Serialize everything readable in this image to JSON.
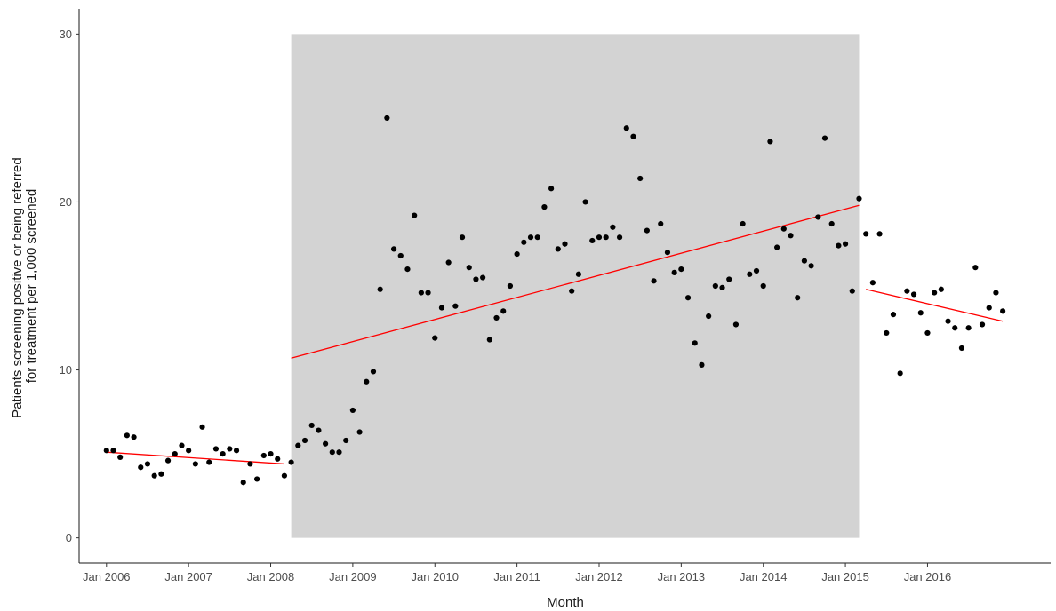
{
  "chart_data": {
    "type": "scatter",
    "title": "",
    "xlabel": "Month",
    "ylabel": [
      "Patients screening positive or being referred",
      "for treatment per 1,000 screened"
    ],
    "x_unit": "month (YYYY-MM)",
    "xlim": [
      "2005-09",
      "2017-07"
    ],
    "ylim": [
      -1.5,
      31.5
    ],
    "y_ticks": [
      0,
      10,
      20,
      30
    ],
    "x_ticks": [
      {
        "x": "2006-01",
        "label": "Jan 2006"
      },
      {
        "x": "2007-01",
        "label": "Jan 2007"
      },
      {
        "x": "2008-01",
        "label": "Jan 2008"
      },
      {
        "x": "2009-01",
        "label": "Jan 2009"
      },
      {
        "x": "2010-01",
        "label": "Jan 2010"
      },
      {
        "x": "2011-01",
        "label": "Jan 2011"
      },
      {
        "x": "2012-01",
        "label": "Jan 2012"
      },
      {
        "x": "2013-01",
        "label": "Jan 2013"
      },
      {
        "x": "2014-01",
        "label": "Jan 2014"
      },
      {
        "x": "2015-01",
        "label": "Jan 2015"
      },
      {
        "x": "2016-01",
        "label": "Jan 2016"
      }
    ],
    "grid": false,
    "shaded_period": {
      "start": "2008-04",
      "end": "2015-03",
      "ymin": 0,
      "ymax": 30,
      "color": "#d3d3d3"
    },
    "point_color": "#000000",
    "trend_color": "#ff0000",
    "points": [
      [
        "2006-01",
        5.2
      ],
      [
        "2006-02",
        5.2
      ],
      [
        "2006-03",
        4.8
      ],
      [
        "2006-04",
        6.1
      ],
      [
        "2006-05",
        6.0
      ],
      [
        "2006-06",
        4.2
      ],
      [
        "2006-07",
        4.4
      ],
      [
        "2006-08",
        3.7
      ],
      [
        "2006-09",
        3.8
      ],
      [
        "2006-10",
        4.6
      ],
      [
        "2006-11",
        5.0
      ],
      [
        "2006-12",
        5.5
      ],
      [
        "2007-01",
        5.2
      ],
      [
        "2007-02",
        4.4
      ],
      [
        "2007-03",
        6.6
      ],
      [
        "2007-04",
        4.5
      ],
      [
        "2007-05",
        5.3
      ],
      [
        "2007-06",
        5.0
      ],
      [
        "2007-07",
        5.3
      ],
      [
        "2007-08",
        5.2
      ],
      [
        "2007-09",
        3.3
      ],
      [
        "2007-10",
        4.4
      ],
      [
        "2007-11",
        3.5
      ],
      [
        "2007-12",
        4.9
      ],
      [
        "2008-01",
        5.0
      ],
      [
        "2008-02",
        4.7
      ],
      [
        "2008-03",
        3.7
      ],
      [
        "2008-04",
        4.5
      ],
      [
        "2008-05",
        5.5
      ],
      [
        "2008-06",
        5.8
      ],
      [
        "2008-07",
        6.7
      ],
      [
        "2008-08",
        6.4
      ],
      [
        "2008-09",
        5.6
      ],
      [
        "2008-10",
        5.1
      ],
      [
        "2008-11",
        5.1
      ],
      [
        "2008-12",
        5.8
      ],
      [
        "2009-01",
        7.6
      ],
      [
        "2009-02",
        6.3
      ],
      [
        "2009-03",
        9.3
      ],
      [
        "2009-04",
        9.9
      ],
      [
        "2009-05",
        14.8
      ],
      [
        "2009-06",
        25.0
      ],
      [
        "2009-07",
        17.2
      ],
      [
        "2009-08",
        16.8
      ],
      [
        "2009-09",
        16.0
      ],
      [
        "2009-10",
        19.2
      ],
      [
        "2009-11",
        14.6
      ],
      [
        "2009-12",
        14.6
      ],
      [
        "2010-01",
        11.9
      ],
      [
        "2010-02",
        13.7
      ],
      [
        "2010-03",
        16.4
      ],
      [
        "2010-04",
        13.8
      ],
      [
        "2010-05",
        17.9
      ],
      [
        "2010-06",
        16.1
      ],
      [
        "2010-07",
        15.4
      ],
      [
        "2010-08",
        15.5
      ],
      [
        "2010-09",
        11.8
      ],
      [
        "2010-10",
        13.1
      ],
      [
        "2010-11",
        13.5
      ],
      [
        "2010-12",
        15.0
      ],
      [
        "2011-01",
        16.9
      ],
      [
        "2011-02",
        17.6
      ],
      [
        "2011-03",
        17.9
      ],
      [
        "2011-04",
        17.9
      ],
      [
        "2011-05",
        19.7
      ],
      [
        "2011-06",
        20.8
      ],
      [
        "2011-07",
        17.2
      ],
      [
        "2011-08",
        17.5
      ],
      [
        "2011-09",
        14.7
      ],
      [
        "2011-10",
        15.7
      ],
      [
        "2011-11",
        20.0
      ],
      [
        "2011-12",
        17.7
      ],
      [
        "2012-01",
        17.9
      ],
      [
        "2012-02",
        17.9
      ],
      [
        "2012-03",
        18.5
      ],
      [
        "2012-04",
        17.9
      ],
      [
        "2012-05",
        24.4
      ],
      [
        "2012-06",
        23.9
      ],
      [
        "2012-07",
        21.4
      ],
      [
        "2012-08",
        18.3
      ],
      [
        "2012-09",
        15.3
      ],
      [
        "2012-10",
        18.7
      ],
      [
        "2012-11",
        17.0
      ],
      [
        "2012-12",
        15.8
      ],
      [
        "2013-01",
        16.0
      ],
      [
        "2013-02",
        14.3
      ],
      [
        "2013-03",
        11.6
      ],
      [
        "2013-04",
        10.3
      ],
      [
        "2013-05",
        13.2
      ],
      [
        "2013-06",
        15.0
      ],
      [
        "2013-07",
        14.9
      ],
      [
        "2013-08",
        15.4
      ],
      [
        "2013-09",
        12.7
      ],
      [
        "2013-10",
        18.7
      ],
      [
        "2013-11",
        15.7
      ],
      [
        "2013-12",
        15.9
      ],
      [
        "2014-01",
        15.0
      ],
      [
        "2014-02",
        23.6
      ],
      [
        "2014-03",
        17.3
      ],
      [
        "2014-04",
        18.4
      ],
      [
        "2014-05",
        18.0
      ],
      [
        "2014-06",
        14.3
      ],
      [
        "2014-07",
        16.5
      ],
      [
        "2014-08",
        16.2
      ],
      [
        "2014-09",
        19.1
      ],
      [
        "2014-10",
        23.8
      ],
      [
        "2014-11",
        18.7
      ],
      [
        "2014-12",
        17.4
      ],
      [
        "2015-01",
        17.5
      ],
      [
        "2015-02",
        14.7
      ],
      [
        "2015-03",
        20.2
      ],
      [
        "2015-04",
        18.1
      ],
      [
        "2015-05",
        15.2
      ],
      [
        "2015-06",
        18.1
      ],
      [
        "2015-07",
        12.2
      ],
      [
        "2015-08",
        13.3
      ],
      [
        "2015-09",
        9.8
      ],
      [
        "2015-10",
        14.7
      ],
      [
        "2015-11",
        14.5
      ],
      [
        "2015-12",
        13.4
      ],
      [
        "2016-01",
        12.2
      ],
      [
        "2016-02",
        14.6
      ],
      [
        "2016-03",
        14.8
      ],
      [
        "2016-04",
        12.9
      ],
      [
        "2016-05",
        12.5
      ],
      [
        "2016-06",
        11.3
      ],
      [
        "2016-07",
        12.5
      ],
      [
        "2016-08",
        16.1
      ],
      [
        "2016-09",
        12.7
      ],
      [
        "2016-10",
        13.7
      ],
      [
        "2016-11",
        14.6
      ],
      [
        "2016-12",
        13.5
      ]
    ],
    "trend_lines": [
      {
        "x0": "2006-01",
        "y0": 5.1,
        "x1": "2008-03",
        "y1": 4.4
      },
      {
        "x0": "2008-04",
        "y0": 10.7,
        "x1": "2015-03",
        "y1": 19.8
      },
      {
        "x0": "2015-04",
        "y0": 14.8,
        "x1": "2016-12",
        "y1": 12.9
      }
    ]
  }
}
